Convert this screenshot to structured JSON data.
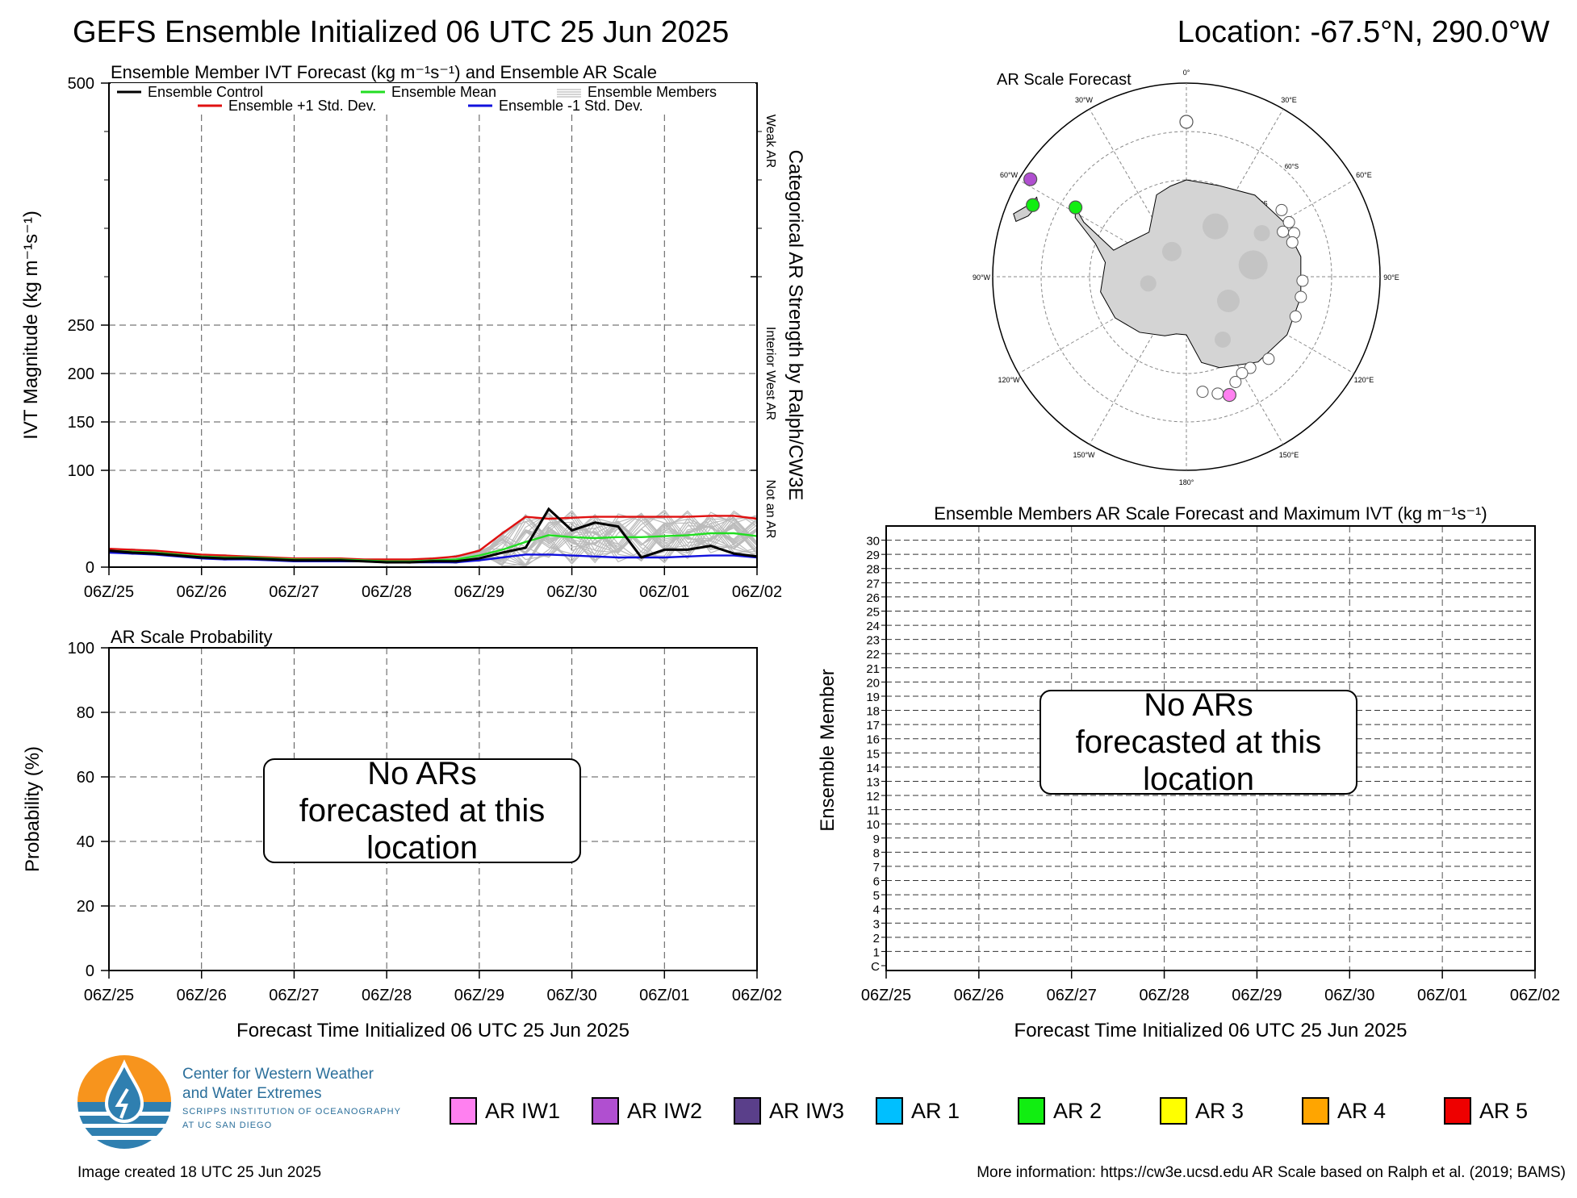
{
  "header": {
    "title": "GEFS Ensemble Initialized 06 UTC 25 Jun 2025",
    "location": "Location: -67.5°N, 290.0°W"
  },
  "chart_data": [
    {
      "id": "ivt",
      "type": "line",
      "title": "Ensemble Member IVT Forecast (kg m⁻¹s⁻¹) and Ensemble AR Scale",
      "ylabel": "IVT Magnitude (kg m⁻¹s⁻¹)",
      "ylabel_right": "Categorical AR Strength by Ralph/CW3E",
      "ylim": [
        0,
        500
      ],
      "yticks": [
        0,
        100,
        150,
        200,
        250,
        500
      ],
      "ytick_labels": [
        "0",
        "100",
        "150",
        "200",
        "250",
        "500"
      ],
      "xlim": [
        0,
        168
      ],
      "xtick_labels": [
        "06Z/25",
        "06Z/26",
        "06Z/27",
        "06Z/28",
        "06Z/29",
        "06Z/30",
        "06Z/01",
        "06Z/02"
      ],
      "right_categories": [
        {
          "label": "Not an AR",
          "from": 0,
          "to": 100
        },
        {
          "label": "Interior West AR",
          "from": 100,
          "to": 300
        },
        {
          "label": "Weak AR",
          "from": 300,
          "to": 500
        }
      ],
      "legend": [
        {
          "label": "Ensemble Control",
          "color": "#000000"
        },
        {
          "label": "Ensemble Mean",
          "color": "#22dd22"
        },
        {
          "label": "Ensemble Members",
          "color": "#aaaaaa"
        },
        {
          "label": "Ensemble +1 Std. Dev.",
          "color": "#e01010"
        },
        {
          "label": "Ensemble -1 Std. Dev.",
          "color": "#1010dd"
        }
      ],
      "x": [
        0,
        6,
        12,
        18,
        24,
        30,
        36,
        42,
        48,
        54,
        60,
        66,
        72,
        78,
        84,
        90,
        96,
        102,
        108,
        114,
        120,
        126,
        132,
        138,
        144,
        150,
        156,
        162,
        168
      ],
      "series": [
        {
          "name": "Ensemble Control",
          "color": "#000000",
          "values": [
            17,
            15,
            14,
            12,
            10,
            9,
            9,
            8,
            7,
            7,
            7,
            6,
            5,
            5,
            6,
            6,
            9,
            15,
            20,
            60,
            38,
            46,
            42,
            10,
            18,
            18,
            22,
            14,
            11
          ]
        },
        {
          "name": "Ensemble Mean",
          "color": "#22dd22",
          "values": [
            17,
            16,
            15,
            13,
            11,
            10,
            10,
            9,
            8,
            8,
            8,
            7,
            6,
            6,
            7,
            8,
            12,
            18,
            26,
            33,
            31,
            30,
            31,
            31,
            32,
            33,
            35,
            35,
            32
          ]
        },
        {
          "name": "Ensemble +1 Std. Dev.",
          "color": "#e01010",
          "values": [
            19,
            18,
            17,
            15,
            13,
            12,
            11,
            10,
            9,
            9,
            9,
            8,
            8,
            8,
            9,
            11,
            17,
            35,
            52,
            50,
            51,
            52,
            52,
            52,
            52,
            52,
            53,
            53,
            50
          ]
        },
        {
          "name": "Ensemble -1 Std. Dev.",
          "color": "#1010dd",
          "values": [
            15,
            14,
            13,
            11,
            9,
            8,
            8,
            7,
            6,
            6,
            6,
            6,
            5,
            5,
            5,
            5,
            7,
            10,
            13,
            13,
            12,
            11,
            10,
            10,
            10,
            11,
            12,
            12,
            10
          ]
        }
      ]
    },
    {
      "id": "prob",
      "type": "line",
      "title": "AR Scale Probability",
      "ylabel": "Probability (%)",
      "xlabel": "Forecast Time Initialized 06 UTC 25 Jun 2025",
      "ylim": [
        0,
        100
      ],
      "ytick_labels": [
        "0",
        "20",
        "40",
        "60",
        "80",
        "100"
      ],
      "xtick_labels": [
        "06Z/25",
        "06Z/26",
        "06Z/27",
        "06Z/28",
        "06Z/29",
        "06Z/30",
        "06Z/01",
        "06Z/02"
      ],
      "note": "No ARs forecasted at this location",
      "series": []
    },
    {
      "id": "members",
      "type": "table",
      "title": "Ensemble Members AR Scale Forecast and Maximum IVT (kg m⁻¹s⁻¹)",
      "ylabel": "Ensemble Member",
      "xlabel": "Forecast Time Initialized 06 UTC 25 Jun 2025",
      "ytick_labels": [
        "C",
        "1",
        "2",
        "3",
        "4",
        "5",
        "6",
        "7",
        "8",
        "9",
        "10",
        "11",
        "12",
        "13",
        "14",
        "15",
        "16",
        "17",
        "18",
        "19",
        "20",
        "21",
        "22",
        "23",
        "24",
        "25",
        "26",
        "27",
        "28",
        "29",
        "30"
      ],
      "xtick_labels": [
        "06Z/25",
        "06Z/26",
        "06Z/27",
        "06Z/28",
        "06Z/29",
        "06Z/30",
        "06Z/01",
        "06Z/02"
      ],
      "note": "No ARs forecasted at this location"
    }
  ],
  "map": {
    "title": "AR Scale Forecast",
    "lon_labels": [
      "0°",
      "30°E",
      "60°E",
      "90°E",
      "120°E",
      "150°E",
      "180°",
      "150°W",
      "120°W",
      "90°W",
      "60°W",
      "30°W"
    ],
    "lat_labels": [
      "60°S",
      "70°S",
      "80°S"
    ],
    "markers_scale": [
      {
        "lon": 0,
        "lat": -58,
        "color": "#ffffff"
      },
      {
        "lon": -58,
        "lat": -52,
        "color": "#b04fd0"
      },
      {
        "lon": -65,
        "lat": -55,
        "color": "#11ee11"
      },
      {
        "lon": -58,
        "lat": -63,
        "color": "#11ee11"
      },
      {
        "lon": 160,
        "lat": -64,
        "color": "#ff80f0"
      }
    ]
  },
  "org": {
    "line1": "Center for Western Weather",
    "line2": "and Water Extremes",
    "line3": "SCRIPPS INSTITUTION OF OCEANOGRAPHY",
    "line4": "AT UC SAN DIEGO"
  },
  "legend": [
    {
      "label": "AR IW1",
      "color": "#ff80f0"
    },
    {
      "label": "AR IW2",
      "color": "#b04fd0"
    },
    {
      "label": "AR IW3",
      "color": "#5a3f8a"
    },
    {
      "label": "AR 1",
      "color": "#00bfff"
    },
    {
      "label": "AR 2",
      "color": "#11ee11"
    },
    {
      "label": "AR 3",
      "color": "#ffff00"
    },
    {
      "label": "AR 4",
      "color": "#ffa500"
    },
    {
      "label": "AR 5",
      "color": "#ee0000"
    }
  ],
  "footer": {
    "created": "Image created 18 UTC 25 Jun 2025",
    "info": "More information: https://cw3e.ucsd.edu AR Scale based on Ralph et al. (2019; BAMS)"
  }
}
